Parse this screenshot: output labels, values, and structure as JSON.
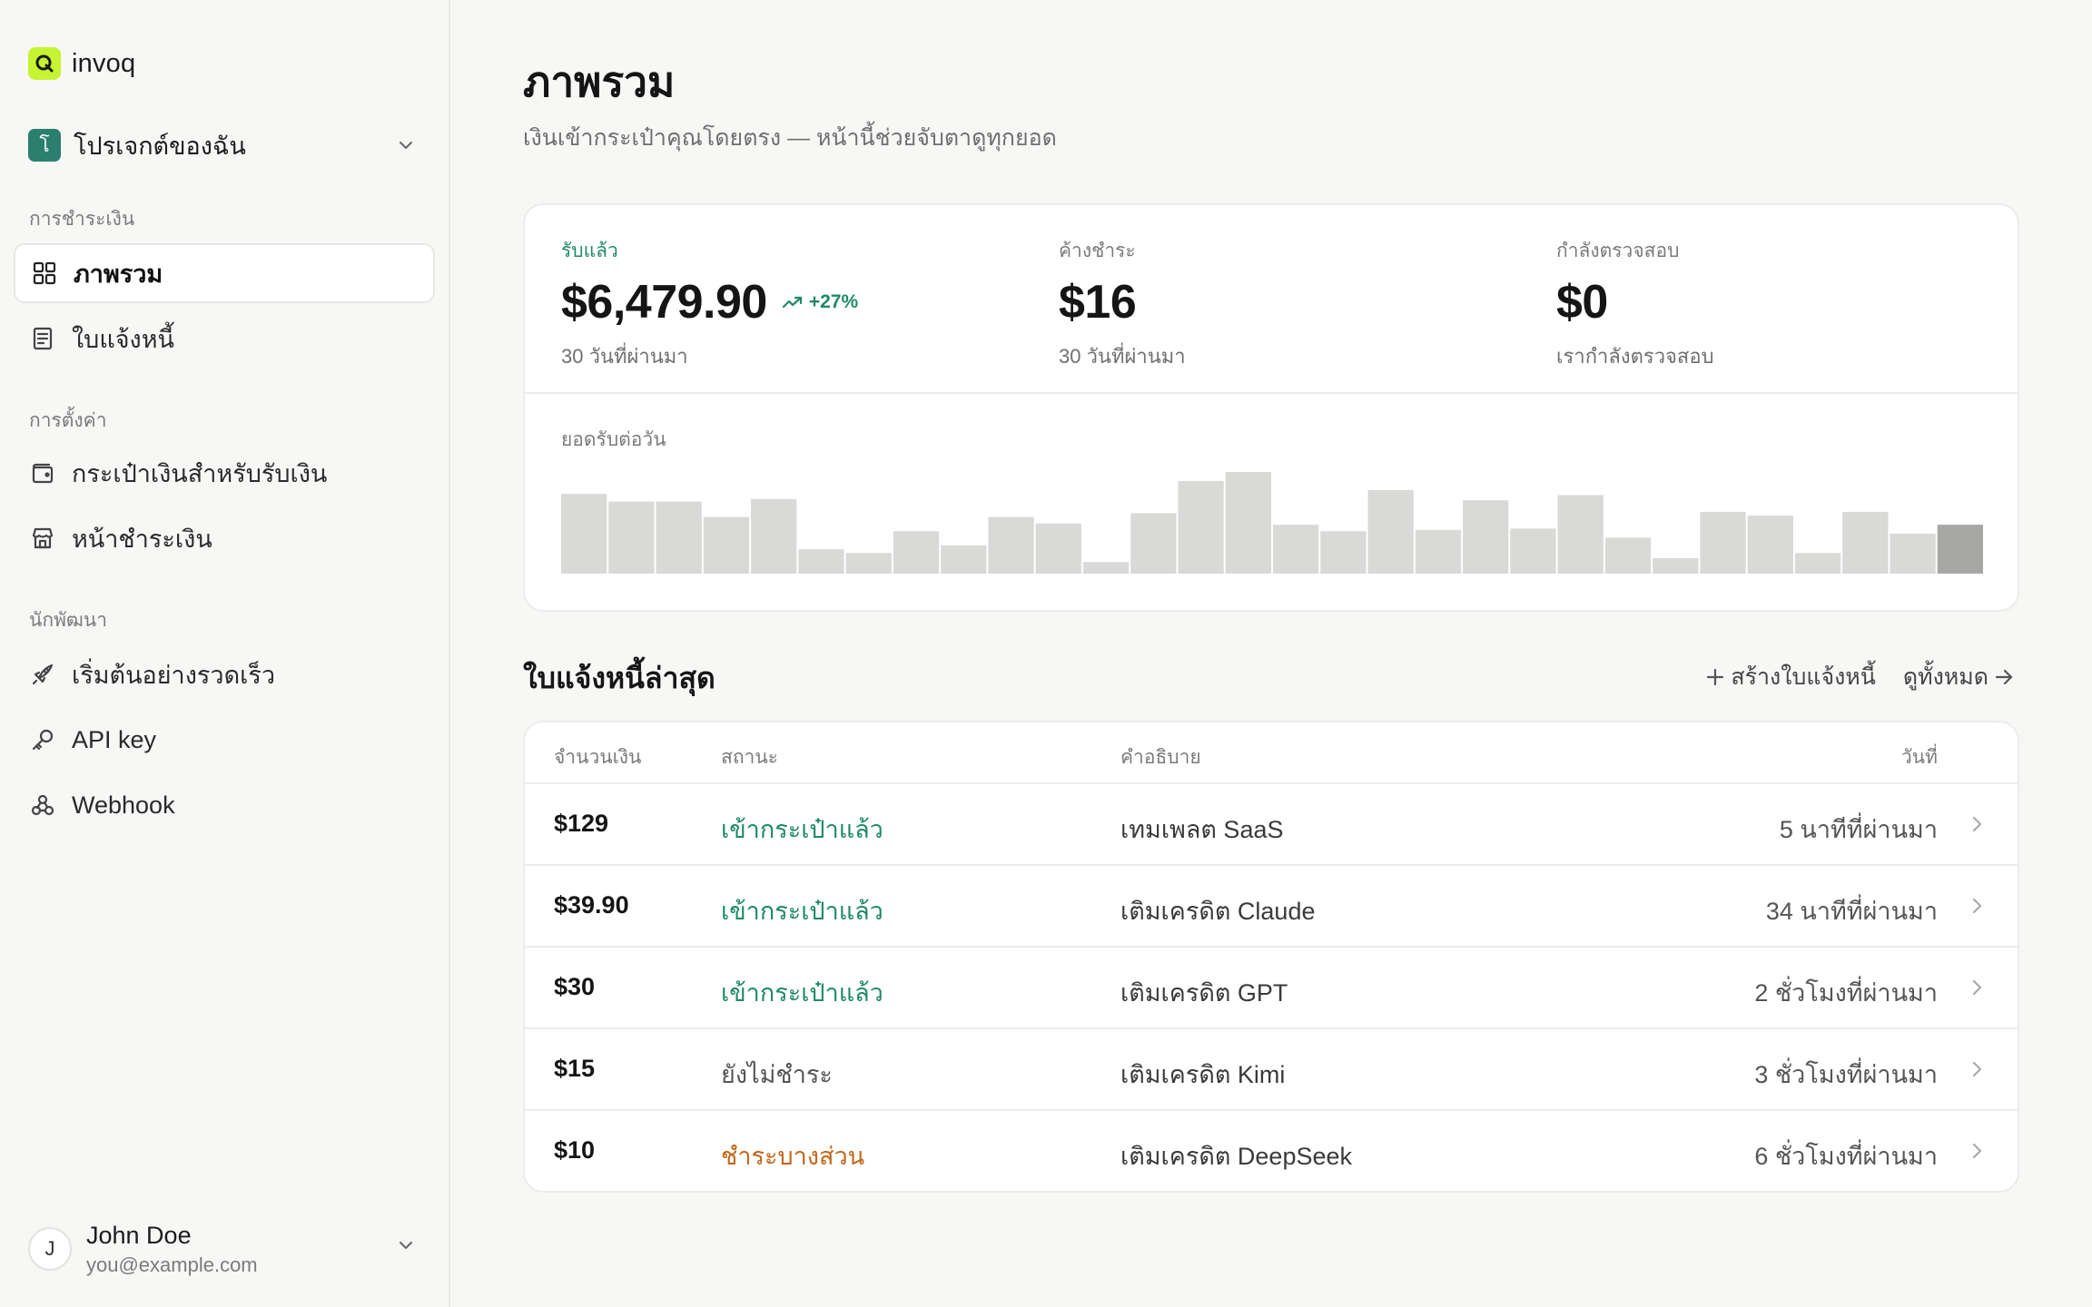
{
  "brand": {
    "name": "invoq"
  },
  "project": {
    "initial": "โ",
    "name": "โปรเจกต์ของฉัน"
  },
  "sidebar": {
    "sections": [
      {
        "label": "การชำระเงิน"
      },
      {
        "label": "การตั้งค่า"
      },
      {
        "label": "นักพัฒนา"
      }
    ],
    "items": [
      {
        "label": "ภาพรวม",
        "icon": "grid-icon"
      },
      {
        "label": "ใบแจ้งหนี้",
        "icon": "document-icon"
      },
      {
        "label": "กระเป๋าเงินสำหรับรับเงิน",
        "icon": "wallet-icon"
      },
      {
        "label": "หน้าชำระเงิน",
        "icon": "store-icon"
      },
      {
        "label": "เริ่มต้นอย่างรวดเร็ว",
        "icon": "rocket-icon"
      },
      {
        "label": "API key",
        "icon": "key-icon"
      },
      {
        "label": "Webhook",
        "icon": "webhook-icon"
      }
    ]
  },
  "user": {
    "initial": "J",
    "name": "John Doe",
    "email": "you@example.com"
  },
  "page": {
    "title": "ภาพรวม",
    "subtitle": "เงินเข้ากระเป๋าคุณโดยตรง — หน้านี้ช่วยจับตาดูทุกยอด"
  },
  "stats": [
    {
      "label": "รับแล้ว",
      "value": "$6,479.90",
      "trend": "+27%",
      "caption": "30 วันที่ผ่านมา"
    },
    {
      "label": "ค้างชำระ",
      "value": "$16",
      "caption": "30 วันที่ผ่านมา"
    },
    {
      "label": "กำลังตรวจสอบ",
      "value": "$0",
      "caption": "เรากำลังตรวจสอบ"
    }
  ],
  "colors": {
    "accent": "#1f8a63",
    "brand": "#c6f432",
    "bar": "#d9d9d7",
    "bar_today": "#a7a7a5",
    "partial": "#c2661a"
  },
  "chart_data": {
    "type": "bar",
    "title": "ยอดรับต่อวัน",
    "values": [
      62,
      56,
      56,
      44,
      58,
      19,
      16,
      33,
      22,
      44,
      39,
      9,
      47,
      72,
      79,
      38,
      33,
      65,
      34,
      57,
      35,
      61,
      28,
      12,
      48,
      45,
      16,
      48,
      31,
      38
    ],
    "highlight_last": true
  },
  "recent": {
    "title": "ใบแจ้งหนี้ล่าสุด",
    "create_label": "สร้างใบแจ้งหนี้",
    "view_all_label": "ดูทั้งหมด",
    "columns": {
      "amount": "จำนวนเงิน",
      "status": "สถานะ",
      "description": "คำอธิบาย",
      "date": "วันที่"
    },
    "rows": [
      {
        "amount": "$129",
        "status": "เข้ากระเป๋าแล้ว",
        "status_type": "paid",
        "description": "เทมเพลต SaaS",
        "date": "5 นาทีที่ผ่านมา"
      },
      {
        "amount": "$39.90",
        "status": "เข้ากระเป๋าแล้ว",
        "status_type": "paid",
        "description": "เติมเครดิต Claude",
        "date": "34 นาทีที่ผ่านมา"
      },
      {
        "amount": "$30",
        "status": "เข้ากระเป๋าแล้ว",
        "status_type": "paid",
        "description": "เติมเครดิต GPT",
        "date": "2 ชั่วโมงที่ผ่านมา"
      },
      {
        "amount": "$15",
        "status": "ยังไม่ชำระ",
        "status_type": "unpaid",
        "description": "เติมเครดิต Kimi",
        "date": "3 ชั่วโมงที่ผ่านมา"
      },
      {
        "amount": "$10",
        "status": "ชำระบางส่วน",
        "status_type": "partial",
        "description": "เติมเครดิต DeepSeek",
        "date": "6 ชั่วโมงที่ผ่านมา"
      }
    ]
  }
}
